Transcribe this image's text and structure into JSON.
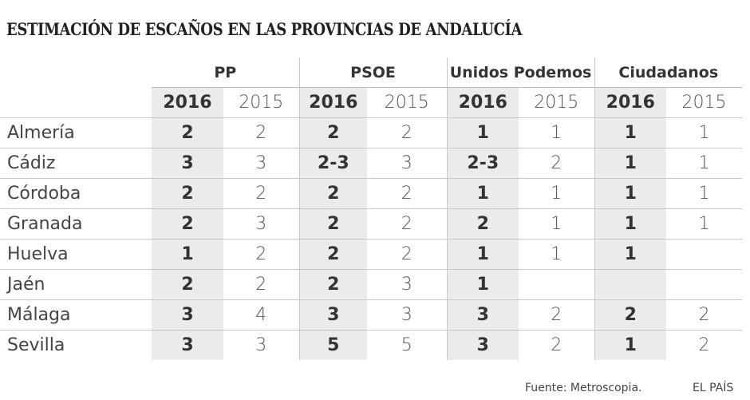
{
  "title": "ESTIMACIÓN DE ESCAÑOS EN LAS PROVINCIAS DE ANDALUCÍA",
  "source": "Fuente: Metroscopia.",
  "brand": "EL PAÍS",
  "chart_data": {
    "type": "table",
    "parties": [
      "PP",
      "PSOE",
      "Unidos Podemos",
      "Ciudadanos"
    ],
    "years": [
      "2016",
      "2015"
    ],
    "rows": [
      {
        "province": "Almería",
        "values": [
          "2",
          "2",
          "2",
          "2",
          "1",
          "1",
          "1",
          "1"
        ]
      },
      {
        "province": "Cádiz",
        "values": [
          "3",
          "3",
          "2-3",
          "3",
          "2-3",
          "2",
          "1",
          "1"
        ]
      },
      {
        "province": "Córdoba",
        "values": [
          "2",
          "2",
          "2",
          "2",
          "1",
          "1",
          "1",
          "1"
        ]
      },
      {
        "province": "Granada",
        "values": [
          "2",
          "3",
          "2",
          "2",
          "2",
          "1",
          "1",
          "1"
        ]
      },
      {
        "province": "Huelva",
        "values": [
          "1",
          "2",
          "2",
          "2",
          "1",
          "1",
          "1",
          ""
        ]
      },
      {
        "province": "Jaén",
        "values": [
          "2",
          "2",
          "2",
          "3",
          "1",
          "",
          "",
          ""
        ]
      },
      {
        "province": "Málaga",
        "values": [
          "3",
          "4",
          "3",
          "3",
          "3",
          "2",
          "2",
          "2"
        ]
      },
      {
        "province": "Sevilla",
        "values": [
          "3",
          "3",
          "5",
          "5",
          "3",
          "2",
          "1",
          "2"
        ]
      }
    ]
  }
}
